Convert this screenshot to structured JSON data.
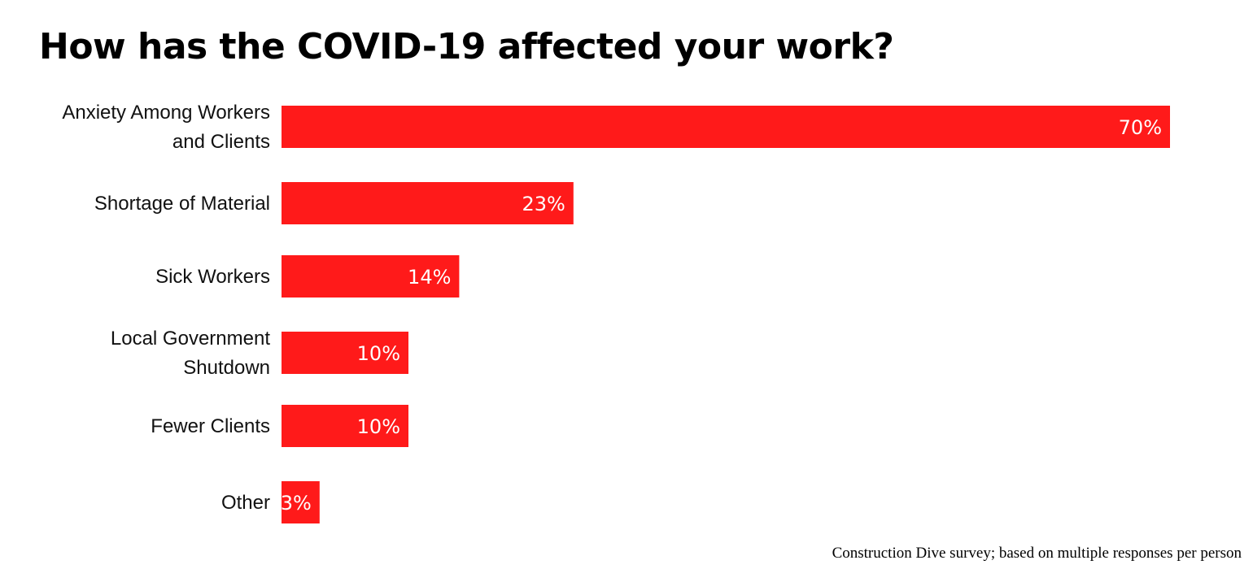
{
  "chart_data": {
    "type": "bar",
    "orientation": "horizontal",
    "title": "How has the COVID-19 affected your work?",
    "categories": [
      [
        "Anxiety Among Workers",
        "and Clients"
      ],
      [
        "Shortage of Material"
      ],
      [
        "Sick Workers"
      ],
      [
        "Local Government",
        "Shutdown"
      ],
      [
        "Fewer Clients"
      ],
      [
        "Other"
      ]
    ],
    "values": [
      70,
      23,
      14,
      10,
      10,
      3
    ],
    "value_labels": [
      "70%",
      "23%",
      "14%",
      "10%",
      "10%",
      "3%"
    ],
    "unit": "%",
    "xlim": [
      0,
      70
    ],
    "grid": false,
    "bar_color": "#ff1a1a",
    "value_label_color": "#ffffff"
  },
  "source_note": "Construction Dive survey; based on multiple responses per person"
}
